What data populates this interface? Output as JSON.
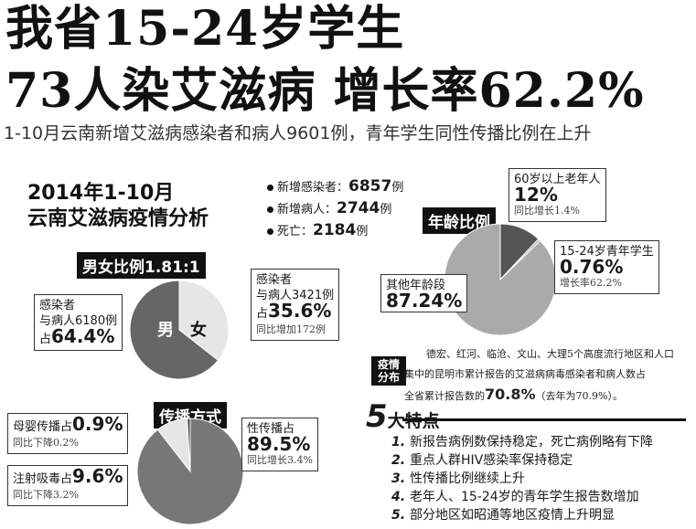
{
  "headline": {
    "line1": "我省15-24岁学生",
    "line2": "73人染艾滋病 增长率62.2%",
    "subtitle": "1-10月云南新增艾滋病感染者和病人9601例，青年学生同性传播比例在上升"
  },
  "panel": {
    "title_line1": "2014年1-10月",
    "title_line2": "云南艾滋病疫情分析"
  },
  "stats": [
    {
      "label": "新增感染者：",
      "value": "6857",
      "unit": "例"
    },
    {
      "label": "新增病人：",
      "value": "2744",
      "unit": "例"
    },
    {
      "label": "死亡：",
      "value": "2184",
      "unit": "例"
    }
  ],
  "gender": {
    "tag": "男女比例1.81:1",
    "male_label": "男",
    "female_label": "女",
    "male_text1": "感染者",
    "male_text2": "与病人6180例",
    "male_pct_prefix": "占",
    "male_pct": "64.4%",
    "female_text1": "感染者",
    "female_text2": "与病人3421例",
    "female_pct_prefix": "占",
    "female_pct": "35.6%",
    "female_note": "同比增加172例",
    "male_share": 64.4,
    "female_share": 35.6,
    "colors": {
      "male": "#666666",
      "female": "#e6e6e6"
    }
  },
  "age": {
    "tag": "年龄比例",
    "old_label": "60岁以上老年人",
    "old_pct": "12%",
    "old_note": "同比增长1.4%",
    "youth_label": "15-24岁青年学生",
    "youth_pct": "0.76%",
    "youth_note": "增长率62.2%",
    "other_label": "其他年龄段",
    "other_pct": "87.24%",
    "shares": [
      12,
      0.76,
      87.24
    ],
    "colors": {
      "old": "#555555",
      "youth": "#bbbbbb",
      "other": "#aaaaaa"
    }
  },
  "distribution": {
    "tag": "疫情分布",
    "text1": "德宏、红河、临沧、文山、大理5个高度流行地区和人口",
    "text2": "集中的昆明市累计报告的艾滋病病毒感染者和病人数占",
    "text3_prefix": "全省累计报告数的",
    "text3_value": "70.8%",
    "text3_suffix": "（去年为70.9%）。"
  },
  "transmission": {
    "tag": "传播方式",
    "mother_label": "母婴传播占",
    "mother_pct": "0.9%",
    "mother_note": "同比下降0.2%",
    "drug_label": "注射吸毒占",
    "drug_pct": "9.6%",
    "drug_note": "同比下降3.2%",
    "sex_label": "性传播占",
    "sex_pct": "89.5%",
    "sex_note": "同比增长3.4%",
    "shares": [
      89.5,
      9.6,
      0.9
    ],
    "colors": {
      "sex": "#777777",
      "drug": "#e6e6e6",
      "mother": "#444444"
    }
  },
  "features": {
    "number": "5",
    "title": "大特点",
    "items": [
      {
        "num": "1.",
        "text": "新报告病例数保持稳定，死亡病例略有下降"
      },
      {
        "num": "2.",
        "text": "重点人群HIV感染率保持稳定"
      },
      {
        "num": "3.",
        "text": "性传播比例继续上升"
      },
      {
        "num": "4.",
        "text": "老年人、15-24岁的青年学生报告数增加"
      },
      {
        "num": "5.",
        "text": "部分地区如昭通等地区疫情上升明显"
      }
    ]
  }
}
